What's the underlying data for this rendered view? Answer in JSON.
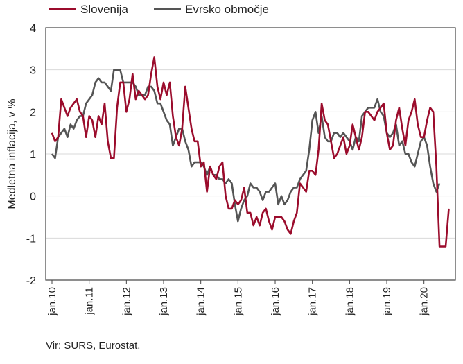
{
  "chart_data": {
    "type": "line",
    "ylabel": "Medletna inflacija, v %",
    "ylim": [
      -2,
      4
    ],
    "yticks": [
      -2,
      -1,
      0,
      1,
      2,
      3,
      4
    ],
    "grid": "horizontal",
    "legend_position": "top-left",
    "x_start": "jan.10",
    "x_tick_labels": [
      "jan.10",
      "jan.11",
      "jan.12",
      "jan.13",
      "jan.14",
      "jan.15",
      "jan.16",
      "jan.17",
      "jan.18",
      "jan.19",
      "jan.20"
    ],
    "series": [
      {
        "name": "Slovenija",
        "color": "#9b0c2c",
        "values": [
          1.5,
          1.3,
          1.4,
          2.3,
          2.1,
          1.9,
          2.1,
          2.2,
          2.3,
          2.0,
          1.9,
          1.4,
          1.9,
          1.8,
          1.4,
          1.9,
          1.7,
          2.2,
          1.3,
          0.9,
          0.9,
          2.1,
          2.7,
          2.7,
          2.0,
          2.3,
          2.9,
          2.3,
          2.5,
          2.4,
          2.3,
          2.4,
          2.9,
          3.3,
          2.6,
          2.3,
          2.7,
          2.4,
          2.7,
          1.9,
          1.4,
          1.2,
          1.6,
          2.6,
          2.1,
          1.6,
          1.3,
          1.3,
          0.7,
          0.8,
          0.1,
          0.7,
          0.5,
          0.4,
          0.7,
          0.8,
          0.0,
          -0.3,
          -0.3,
          -0.1,
          -0.2,
          -0.1,
          0.2,
          -0.4,
          -0.4,
          -0.7,
          -0.5,
          -0.7,
          -0.4,
          -0.3,
          -0.6,
          -0.8,
          -0.5,
          -0.5,
          -0.5,
          -0.6,
          -0.8,
          -0.9,
          -0.6,
          -0.4,
          0.3,
          0.2,
          0.1,
          0.6,
          0.6,
          0.5,
          1.1,
          2.2,
          1.8,
          1.7,
          1.3,
          0.9,
          1.0,
          1.2,
          1.4,
          1.0,
          1.2,
          1.7,
          1.4,
          1.1,
          1.4,
          2.0,
          2.0,
          1.9,
          1.8,
          2.0,
          2.1,
          2.2,
          1.5,
          1.1,
          1.2,
          1.8,
          2.1,
          1.6,
          1.2,
          1.8,
          2.0,
          2.3,
          1.7,
          1.4,
          1.4,
          1.8,
          2.1,
          2.0,
          0.7,
          -1.2,
          -1.2,
          -1.2,
          -0.3
        ]
      },
      {
        "name": "Evrsko območje",
        "color": "#555555",
        "values": [
          1.0,
          0.9,
          1.4,
          1.5,
          1.6,
          1.4,
          1.7,
          1.6,
          1.8,
          1.9,
          1.9,
          2.2,
          2.3,
          2.4,
          2.7,
          2.8,
          2.7,
          2.7,
          2.6,
          2.5,
          3.0,
          3.0,
          3.0,
          2.7,
          2.7,
          2.7,
          2.7,
          2.6,
          2.4,
          2.4,
          2.4,
          2.6,
          2.6,
          2.5,
          2.2,
          2.2,
          2.0,
          1.8,
          1.7,
          1.2,
          1.4,
          1.6,
          1.6,
          1.3,
          1.1,
          0.7,
          0.8,
          0.8,
          0.8,
          0.7,
          0.5,
          0.7,
          0.5,
          0.5,
          0.4,
          0.4,
          0.3,
          0.4,
          0.3,
          -0.2,
          -0.6,
          -0.3,
          -0.1,
          0.0,
          0.3,
          0.2,
          0.2,
          0.1,
          -0.1,
          0.1,
          0.1,
          0.2,
          0.3,
          -0.2,
          0.0,
          -0.2,
          -0.1,
          0.1,
          0.2,
          0.2,
          0.4,
          0.5,
          0.6,
          1.1,
          1.8,
          2.0,
          1.5,
          1.9,
          1.4,
          1.3,
          1.3,
          1.5,
          1.5,
          1.4,
          1.5,
          1.4,
          1.3,
          1.1,
          1.4,
          1.3,
          1.9,
          2.0,
          2.1,
          2.1,
          2.1,
          2.3,
          2.0,
          1.9,
          1.5,
          1.4,
          1.5,
          1.7,
          1.2,
          1.3,
          1.0,
          1.0,
          0.8,
          0.7,
          1.0,
          1.3,
          1.4,
          1.2,
          0.7,
          0.3,
          0.1,
          0.3
        ]
      }
    ]
  },
  "source_note": "Vir: SURS, Eurostat."
}
